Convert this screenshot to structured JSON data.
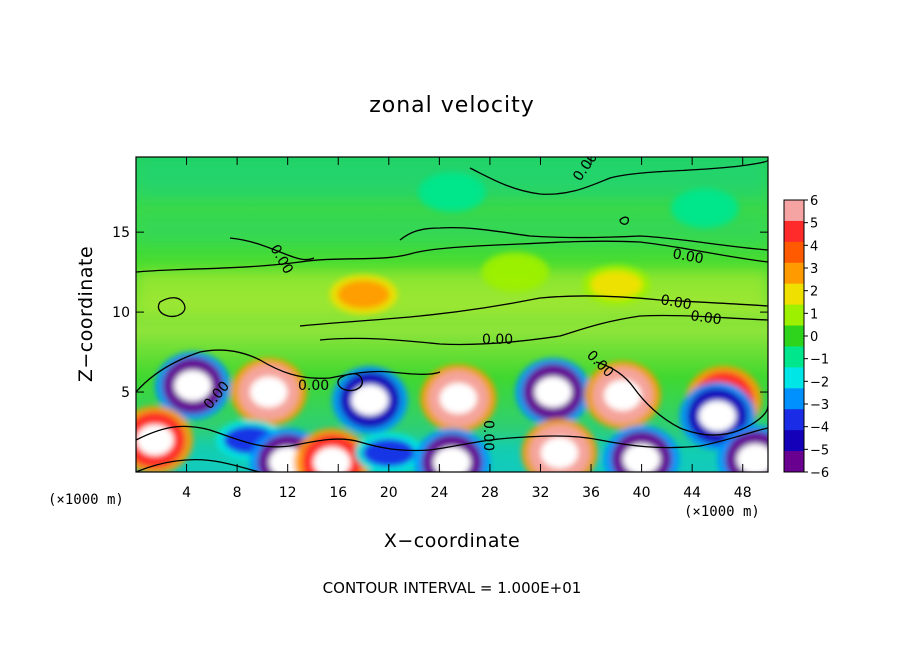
{
  "chart_data": {
    "type": "heatmap",
    "title": "zonal velocity",
    "xlabel": "X−coordinate",
    "ylabel": "Z−coordinate",
    "x_unit_left": "(×1000 m)",
    "x_unit_right": "(×1000 m)",
    "xlim": [
      0,
      50
    ],
    "ylim": [
      0,
      19.7
    ],
    "x_ticks": [
      4,
      8,
      12,
      16,
      20,
      24,
      28,
      32,
      36,
      40,
      44,
      48
    ],
    "y_ticks": [
      5,
      10,
      15
    ],
    "colorbar": {
      "ticks": [
        "6",
        "5",
        "4",
        "3",
        "2",
        "1",
        "0",
        "−1",
        "−2",
        "−3",
        "−4",
        "−5",
        "−6"
      ],
      "colors": [
        "#f6a3a3",
        "#ff2a2a",
        "#ff5a00",
        "#ff9a00",
        "#f0e000",
        "#9cf000",
        "#2ed41c",
        "#00e68c",
        "#00e6e6",
        "#0091ff",
        "#1a2ce6",
        "#1400b8",
        "#6a0090"
      ]
    },
    "contour_label": "0.00",
    "contour_interval": "CONTOUR INTERVAL = 1.000E+01",
    "features": [
      {
        "x": 4.5,
        "z": 5.4,
        "value": -6
      },
      {
        "x": 10.5,
        "z": 5.0,
        "value": 6
      },
      {
        "x": 18.5,
        "z": 4.5,
        "value": -5
      },
      {
        "x": 25.5,
        "z": 4.6,
        "value": 6
      },
      {
        "x": 33.0,
        "z": 5.0,
        "value": -6
      },
      {
        "x": 38.5,
        "z": 4.8,
        "value": 6
      },
      {
        "x": 46.5,
        "z": 4.5,
        "value": 5
      },
      {
        "x": 46.0,
        "z": 3.5,
        "value": -5
      },
      {
        "x": 1.5,
        "z": 2.0,
        "value": 5
      },
      {
        "x": 9.0,
        "z": 2.0,
        "value": -4
      },
      {
        "x": 12.0,
        "z": 0.6,
        "value": -6
      },
      {
        "x": 15.5,
        "z": 0.6,
        "value": 5
      },
      {
        "x": 20.0,
        "z": 1.2,
        "value": -4
      },
      {
        "x": 25.0,
        "z": 0.6,
        "value": -6
      },
      {
        "x": 33.5,
        "z": 1.2,
        "value": 6
      },
      {
        "x": 40.0,
        "z": 0.8,
        "value": -6
      },
      {
        "x": 49.0,
        "z": 0.8,
        "value": -6
      },
      {
        "x": 18.0,
        "z": 11.1,
        "value": 3
      },
      {
        "x": 38.0,
        "z": 11.7,
        "value": 2
      },
      {
        "x": 30.0,
        "z": 12.5,
        "value": 1
      },
      {
        "x": 25.0,
        "z": 17.5,
        "value": -1
      },
      {
        "x": 45.0,
        "z": 16.5,
        "value": -1
      }
    ]
  }
}
